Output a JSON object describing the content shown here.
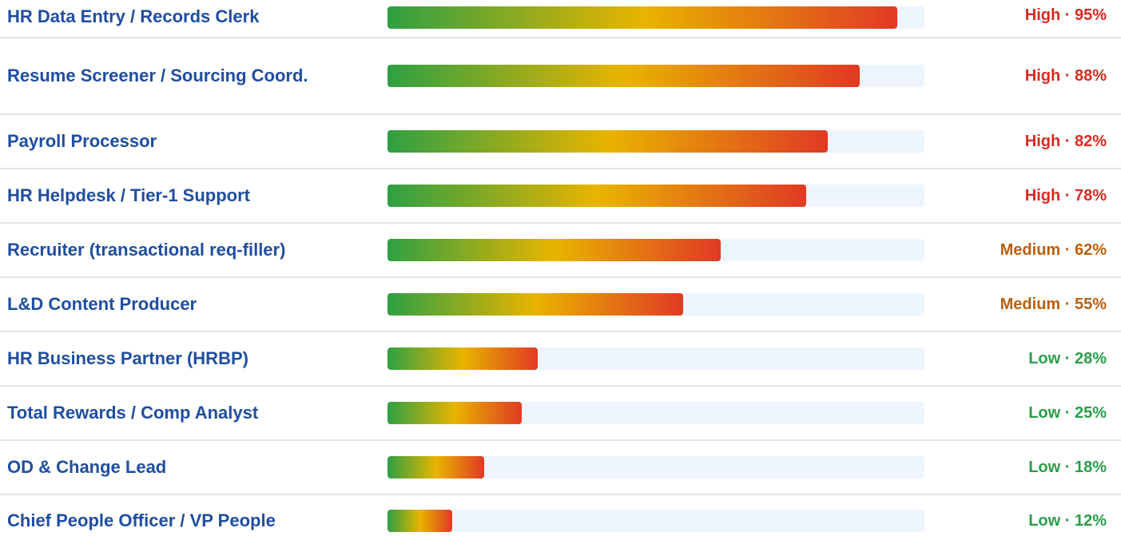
{
  "chart_data": {
    "type": "bar",
    "orientation": "horizontal",
    "categories": [
      "HR Data Entry / Records Clerk",
      "Resume Screener / Sourcing Coord.",
      "Payroll Processor",
      "HR Helpdesk / Tier-1 Support",
      "Recruiter (transactional req-filler)",
      "L&D Content Producer",
      "HR Business Partner (HRBP)",
      "Total Rewards / Comp Analyst",
      "OD & Change Lead",
      "Chief People Officer / VP People"
    ],
    "values": [
      95,
      88,
      82,
      78,
      62,
      55,
      28,
      25,
      18,
      12
    ],
    "value_labels": [
      "High · 95%",
      "High · 88%",
      "High · 82%",
      "High · 78%",
      "Medium · 62%",
      "Medium · 55%",
      "Low · 28%",
      "Low · 25%",
      "Low · 18%",
      "Low · 12%"
    ],
    "value_label_colors": [
      "#d62b22",
      "#d62b22",
      "#d62b22",
      "#d62b22",
      "#b8600f",
      "#b8600f",
      "#2a9d4a",
      "#2a9d4a",
      "#2a9d4a",
      "#2a9d4a"
    ],
    "gradient": [
      "#2ea043",
      "#e8b400",
      "#e03a24"
    ],
    "xlim": [
      0,
      100
    ]
  }
}
